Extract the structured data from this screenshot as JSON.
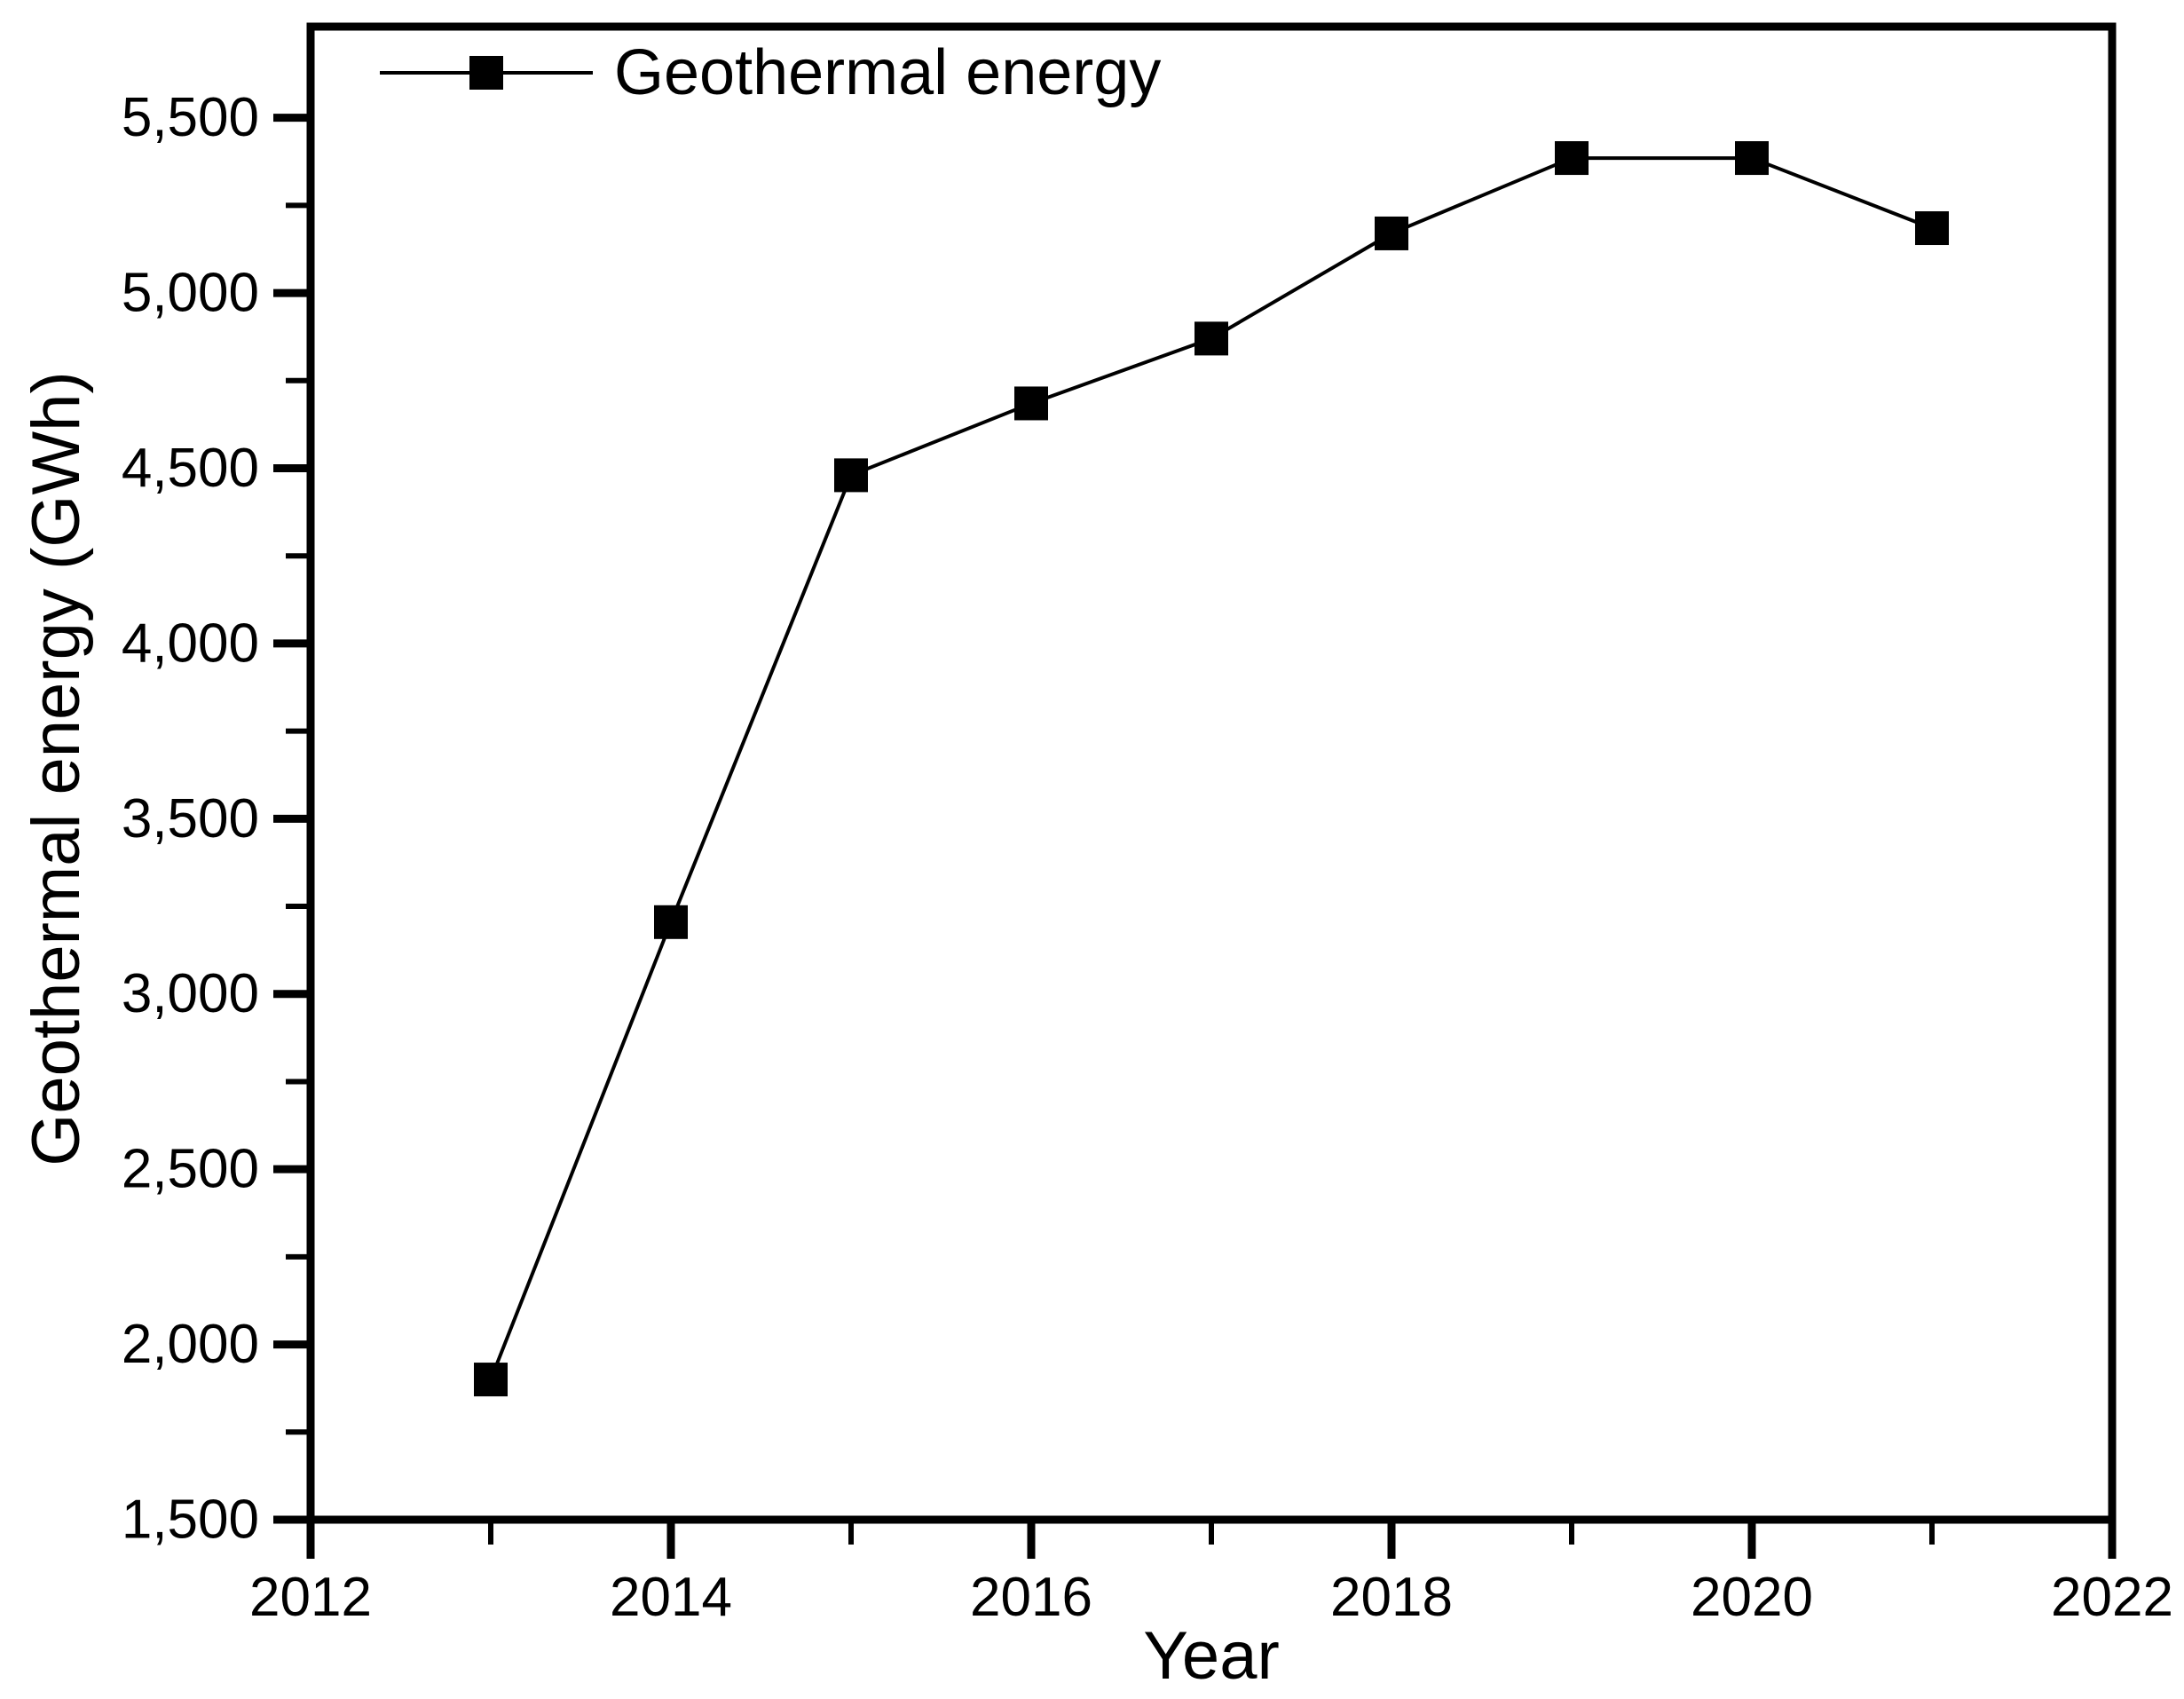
{
  "page": {
    "background": "#ffffff"
  },
  "colors": {
    "axis": "#000000",
    "series": "#000000",
    "text": "#000000",
    "background": "#ffffff"
  },
  "chart_data": {
    "type": "line",
    "title": "",
    "xlabel": "Year",
    "ylabel": "Geothermal energy (GWh)",
    "grid": false,
    "legend_position": "top-left-inside",
    "xlim": [
      2012,
      2022
    ],
    "ylim": [
      1500,
      5760
    ],
    "x_major_ticks": [
      2012,
      2014,
      2016,
      2018,
      2020,
      2022
    ],
    "x_tick_labels": [
      "2012",
      "2014",
      "2016",
      "2018",
      "2020",
      "2022"
    ],
    "x_minor_ticks": [
      2013,
      2015,
      2017,
      2019,
      2021
    ],
    "y_major_ticks": [
      1500,
      2000,
      2500,
      3000,
      3500,
      4000,
      4500,
      5000,
      5500
    ],
    "y_tick_labels": [
      "1,500",
      "2,000",
      "2,500",
      "3,000",
      "3,500",
      "4,000",
      "4,500",
      "5,000",
      "5,500"
    ],
    "y_minor_ticks": [
      1750,
      2250,
      2750,
      3250,
      3750,
      4250,
      4750,
      5250
    ],
    "series": [
      {
        "name": "Geothermal energy",
        "marker": "filled-square",
        "color": "#000000",
        "x": [
          2013,
          2014,
          2015,
          2016,
          2017,
          2018,
          2019,
          2020,
          2021
        ],
        "values": [
          1900,
          3205,
          4480,
          4685,
          4870,
          5170,
          5385,
          5385,
          5185
        ]
      }
    ]
  }
}
